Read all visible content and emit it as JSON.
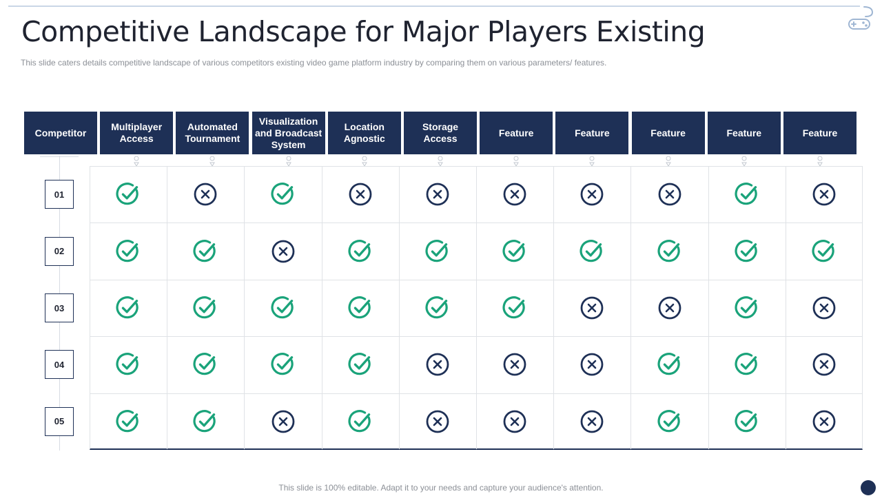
{
  "title": "Competitive Landscape for Major Players Existing",
  "subtitle": "This slide caters details competitive landscape of various  competitors existing video  game  platform  industry  by comparing  them on various  parameters/ features.",
  "footer": "This slide is 100% editable. Adapt it to your needs and capture your audience's attention.",
  "colors": {
    "navy": "#1e3056",
    "check_green": "#1aa37a",
    "cross_navy": "#1e3056",
    "grid": "#dfe2e6"
  },
  "icons": {
    "yes": "check-circle-icon",
    "no": "cross-circle-icon",
    "corner": "game-controller-icon"
  },
  "table": {
    "headers": [
      "Competitor",
      "Multiplayer Access",
      "Automated Tournament",
      "Visualization and Broadcast System",
      "Location Agnostic",
      "Storage Access",
      "Feature",
      "Feature",
      "Feature",
      "Feature",
      "Feature"
    ],
    "rows": [
      {
        "label": "01",
        "values": [
          true,
          false,
          true,
          false,
          false,
          false,
          false,
          false,
          true,
          false
        ]
      },
      {
        "label": "02",
        "values": [
          true,
          true,
          false,
          true,
          true,
          true,
          true,
          true,
          true,
          true
        ]
      },
      {
        "label": "03",
        "values": [
          true,
          true,
          true,
          true,
          true,
          true,
          false,
          false,
          true,
          false
        ]
      },
      {
        "label": "04",
        "values": [
          true,
          true,
          true,
          true,
          false,
          false,
          false,
          true,
          true,
          false
        ]
      },
      {
        "label": "05",
        "values": [
          true,
          true,
          false,
          true,
          false,
          false,
          false,
          true,
          true,
          false
        ]
      }
    ]
  }
}
